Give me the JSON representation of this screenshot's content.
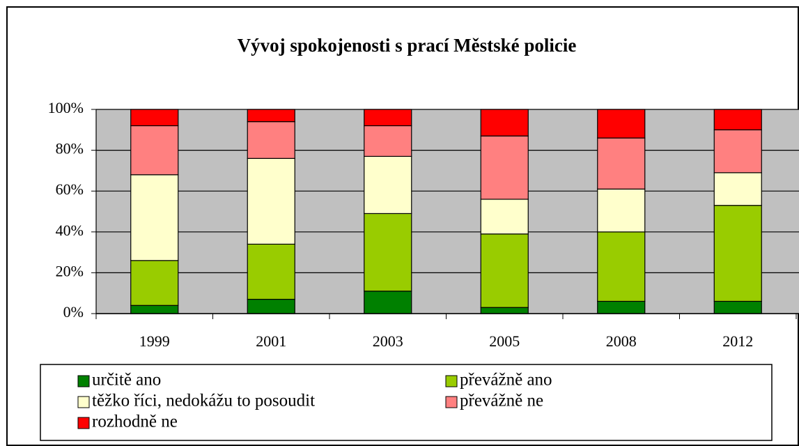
{
  "chart_data": {
    "type": "stacked_bar",
    "title": "Vývoj spokojenosti s prací Městské policie",
    "categories": [
      "1999",
      "2001",
      "2003",
      "2005",
      "2008",
      "2012"
    ],
    "series": [
      {
        "name": "určitě ano",
        "color": "#008000",
        "values": [
          4,
          7,
          11,
          3,
          6,
          6
        ]
      },
      {
        "name": "převážně ano",
        "color": "#99cc00",
        "values": [
          22,
          27,
          38,
          36,
          34,
          47
        ]
      },
      {
        "name": "těžko říci, nedokážu to posoudit",
        "color": "#ffffcc",
        "values": [
          42,
          42,
          28,
          17,
          21,
          16
        ]
      },
      {
        "name": "převážně ne",
        "color": "#ff8080",
        "values": [
          24,
          18,
          15,
          31,
          25,
          21
        ]
      },
      {
        "name": "rozhodně ne",
        "color": "#ff0000",
        "values": [
          8,
          6,
          8,
          13,
          14,
          10
        ]
      }
    ],
    "ylim": [
      0,
      100
    ],
    "yticks": [
      {
        "value": 0,
        "label": "0%"
      },
      {
        "value": 20,
        "label": "20%"
      },
      {
        "value": 40,
        "label": "40%"
      },
      {
        "value": 60,
        "label": "60%"
      },
      {
        "value": 80,
        "label": "80%"
      },
      {
        "value": 100,
        "label": "100%"
      }
    ],
    "grid": true,
    "legend": "bottom"
  }
}
